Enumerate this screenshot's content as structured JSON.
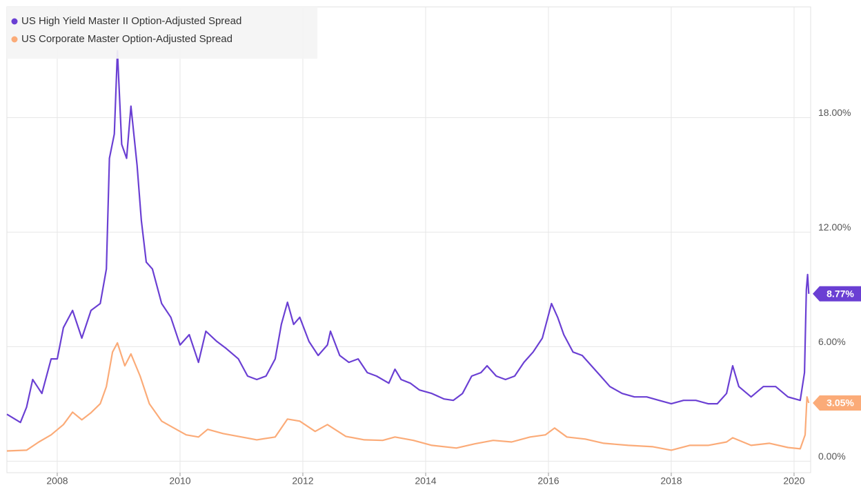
{
  "chart_data": {
    "type": "line",
    "series": [
      {
        "name": "US High Yield Master II Option-Adjusted Spread",
        "color": "#6a3fd3",
        "end_label": "8.77%",
        "x": [
          2007.18,
          2007.4,
          2007.5,
          2007.6,
          2007.75,
          2007.9,
          2008.0,
          2008.1,
          2008.25,
          2008.4,
          2008.55,
          2008.7,
          2008.8,
          2008.85,
          2008.93,
          2008.98,
          2009.05,
          2009.13,
          2009.2,
          2009.3,
          2009.37,
          2009.45,
          2009.55,
          2009.7,
          2009.85,
          2010.0,
          2010.15,
          2010.3,
          2010.42,
          2010.6,
          2010.75,
          2010.95,
          2011.1,
          2011.25,
          2011.4,
          2011.55,
          2011.65,
          2011.75,
          2011.85,
          2011.95,
          2012.1,
          2012.25,
          2012.4,
          2012.45,
          2012.6,
          2012.75,
          2012.9,
          2013.05,
          2013.2,
          2013.4,
          2013.5,
          2013.6,
          2013.75,
          2013.9,
          2014.1,
          2014.3,
          2014.45,
          2014.6,
          2014.75,
          2014.9,
          2015.0,
          2015.15,
          2015.3,
          2015.45,
          2015.6,
          2015.75,
          2015.9,
          2016.05,
          2016.15,
          2016.25,
          2016.4,
          2016.55,
          2016.7,
          2016.85,
          2017.0,
          2017.2,
          2017.4,
          2017.6,
          2017.8,
          2018.0,
          2018.2,
          2018.4,
          2018.6,
          2018.75,
          2018.9,
          2019.0,
          2019.1,
          2019.3,
          2019.5,
          2019.7,
          2019.9,
          2020.1,
          2020.17,
          2020.2,
          2020.22,
          2020.24
        ],
        "values": [
          2.46,
          2.03,
          2.83,
          4.28,
          3.55,
          5.36,
          5.36,
          7.0,
          7.9,
          6.45,
          7.9,
          8.26,
          10.07,
          15.87,
          17.14,
          21.5,
          16.6,
          15.87,
          18.6,
          15.5,
          12.6,
          10.43,
          10.07,
          8.26,
          7.54,
          6.09,
          6.63,
          5.18,
          6.81,
          6.27,
          5.91,
          5.36,
          4.46,
          4.28,
          4.46,
          5.36,
          7.17,
          8.33,
          7.17,
          7.54,
          6.27,
          5.54,
          6.09,
          6.81,
          5.54,
          5.18,
          5.36,
          4.64,
          4.46,
          4.09,
          4.82,
          4.28,
          4.09,
          3.73,
          3.55,
          3.26,
          3.19,
          3.55,
          4.46,
          4.64,
          5.0,
          4.46,
          4.28,
          4.46,
          5.18,
          5.72,
          6.45,
          8.26,
          7.54,
          6.63,
          5.72,
          5.54,
          5.0,
          4.46,
          3.91,
          3.55,
          3.37,
          3.37,
          3.19,
          3.01,
          3.19,
          3.19,
          3.01,
          3.01,
          3.55,
          5.0,
          3.91,
          3.37,
          3.91,
          3.91,
          3.37,
          3.19,
          4.64,
          8.99,
          9.78,
          8.77
        ]
      },
      {
        "name": "US Corporate Master Option-Adjusted Spread",
        "color": "#fbab78",
        "end_label": "3.05%",
        "x": [
          2007.18,
          2007.5,
          2007.7,
          2007.9,
          2008.1,
          2008.25,
          2008.4,
          2008.55,
          2008.7,
          2008.8,
          2008.9,
          2008.98,
          2009.1,
          2009.2,
          2009.35,
          2009.5,
          2009.7,
          2009.9,
          2010.1,
          2010.3,
          2010.45,
          2010.7,
          2010.95,
          2011.25,
          2011.55,
          2011.75,
          2011.95,
          2012.2,
          2012.4,
          2012.7,
          2013.0,
          2013.3,
          2013.5,
          2013.8,
          2014.1,
          2014.5,
          2014.8,
          2015.1,
          2015.4,
          2015.7,
          2015.95,
          2016.1,
          2016.3,
          2016.6,
          2016.9,
          2017.3,
          2017.7,
          2018.0,
          2018.3,
          2018.6,
          2018.9,
          2019.0,
          2019.3,
          2019.6,
          2019.9,
          2020.1,
          2020.18,
          2020.21,
          2020.24
        ],
        "values": [
          0.54,
          0.58,
          1.01,
          1.38,
          1.92,
          2.57,
          2.17,
          2.54,
          3.01,
          3.91,
          5.72,
          6.2,
          5.0,
          5.62,
          4.46,
          3.01,
          2.1,
          1.74,
          1.38,
          1.27,
          1.67,
          1.45,
          1.3,
          1.12,
          1.27,
          2.21,
          2.1,
          1.56,
          1.92,
          1.3,
          1.12,
          1.09,
          1.27,
          1.09,
          0.83,
          0.69,
          0.91,
          1.09,
          1.01,
          1.27,
          1.38,
          1.74,
          1.27,
          1.16,
          0.94,
          0.83,
          0.76,
          0.58,
          0.83,
          0.83,
          1.01,
          1.23,
          0.83,
          0.94,
          0.72,
          0.65,
          1.38,
          3.37,
          3.05
        ]
      }
    ],
    "xlim": [
      2007.18,
      2020.27
    ],
    "xticks": [
      2008,
      2010,
      2012,
      2014,
      2016,
      2018,
      2020
    ],
    "ylim": [
      -0.6,
      23.8
    ],
    "yticks": [
      {
        "value": 0,
        "label": "0.00%"
      },
      {
        "value": 6,
        "label": "6.00%"
      },
      {
        "value": 12,
        "label": "12.00%"
      },
      {
        "value": 18,
        "label": "18.00%"
      }
    ],
    "grid": true,
    "legend": "top-left"
  }
}
